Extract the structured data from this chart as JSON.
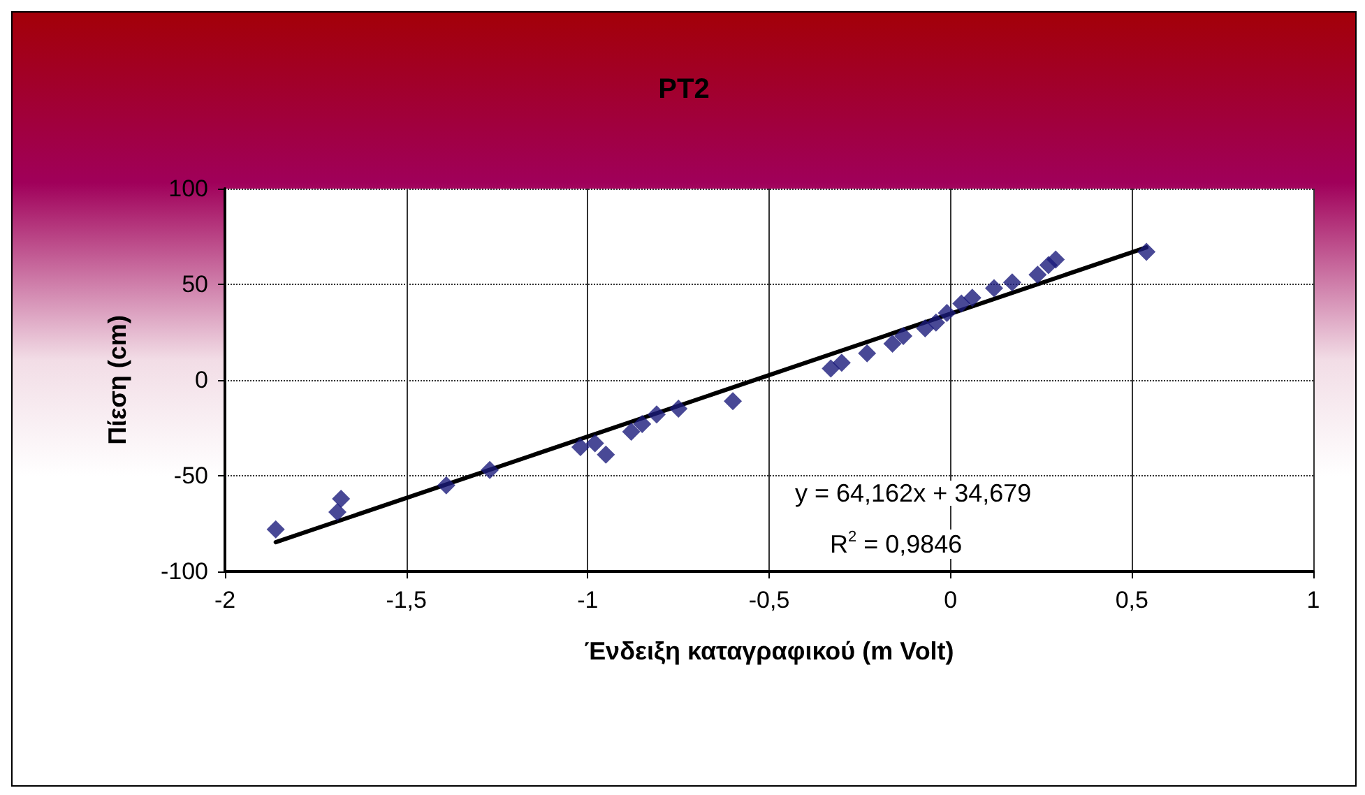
{
  "chart_data": {
    "type": "scatter",
    "title": "PT2",
    "xlabel": "Ένδειξη καταγραφικού (m Volt)",
    "ylabel": "Πίεση (cm)",
    "annotations": [
      "y = 64,162x + 34,679",
      "R$^{2}$ = 0,9846"
    ],
    "xlim": [
      -2,
      1
    ],
    "xticks": [
      -2,
      {
        "value": -1.5,
        "label": "-1,5"
      },
      -1,
      {
        "value": -0.5,
        "label": "-0,5"
      },
      0,
      {
        "value": 0.5,
        "label": "0,5"
      },
      1
    ],
    "ylim": [
      -100,
      100
    ],
    "yticks": [
      -100,
      -50,
      0,
      50,
      100
    ],
    "grid": true,
    "marker": "diamond",
    "series": [
      {
        "color": "#1c1c7c",
        "x": [
          -1.86,
          -1.69,
          -1.68,
          -1.39,
          -1.27,
          -1.02,
          -0.98,
          -0.95,
          -0.88,
          -0.85,
          -0.81,
          -0.75,
          -0.6,
          -0.33,
          -0.3,
          -0.23,
          -0.16,
          -0.13,
          -0.07,
          -0.04,
          -0.01,
          0.03,
          0.06,
          0.12,
          0.17,
          0.24,
          0.27,
          0.29,
          0.54
        ],
        "values": [
          -78,
          -69,
          -62,
          -55,
          -47,
          -35,
          -33,
          -39,
          -27,
          -23,
          -18,
          -15,
          -11,
          6,
          9,
          14,
          19,
          23,
          27,
          30,
          35,
          40,
          43,
          48,
          51,
          55,
          60,
          63,
          67
        ]
      },
      {
        "type": "line",
        "color": "#000000",
        "marker": "none",
        "x": [
          -1.86,
          0.54
        ],
        "values": [
          -84.7,
          69.3
        ]
      }
    ]
  }
}
